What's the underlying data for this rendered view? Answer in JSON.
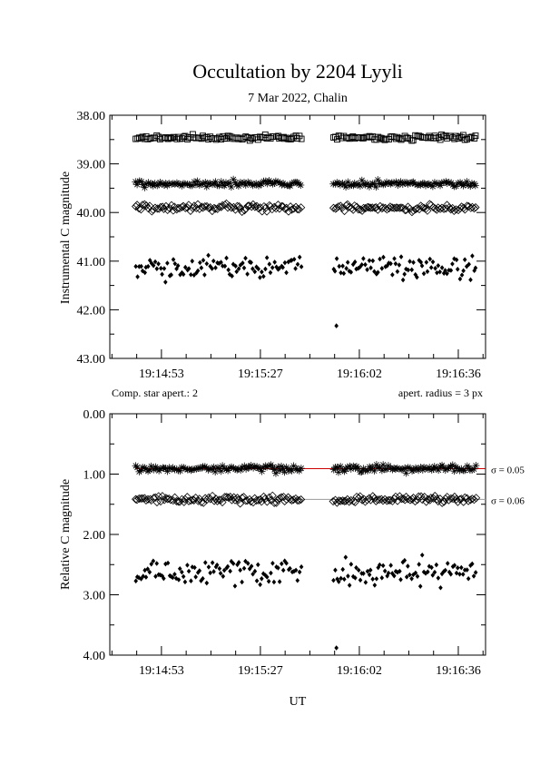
{
  "title": "Occultation by 2204 Lyyli",
  "subtitle": "7 Mar 2022, Chalin",
  "xlabel": "UT",
  "notes": {
    "left": "Comp. star apert.: 2",
    "right": "apert. radius = 3 px"
  },
  "colors": {
    "axis": "#000000",
    "fit_red": "#cc0000",
    "fit_gray": "#999999"
  },
  "chart_data": [
    {
      "type": "scatter",
      "ylabel": "Instrumental C magnitude",
      "ylim": [
        38.0,
        43.0
      ],
      "y_inverted": true,
      "yticks": [
        "38.00",
        "39.00",
        "40.00",
        "41.00",
        "42.00",
        "43.00"
      ],
      "xticks": [
        "19:14:53",
        "19:15:27",
        "19:16:02",
        "19:16:36"
      ],
      "xlim_seconds_after_19_14_00": [
        35,
        166
      ],
      "series": [
        {
          "marker": "square",
          "level": 38.46,
          "scatter": 0.05
        },
        {
          "marker": "asterisk",
          "level": 39.41,
          "scatter": 0.06
        },
        {
          "marker": "diamond",
          "level": 39.9,
          "scatter": 0.07
        },
        {
          "marker": "filled-diamond",
          "level": 41.12,
          "scatter": 0.22
        }
      ],
      "outliers": [
        {
          "t": 114,
          "y": 42.33
        }
      ]
    },
    {
      "type": "scatter",
      "ylabel": "Relative C magnitude",
      "ylim": [
        0.0,
        4.0
      ],
      "y_inverted": true,
      "yticks": [
        "0.00",
        "1.00",
        "2.00",
        "3.00",
        "4.00"
      ],
      "xticks": [
        "19:14:53",
        "19:15:27",
        "19:16:02",
        "19:16:36"
      ],
      "xlim_seconds_after_19_14_00": [
        35,
        166
      ],
      "series": [
        {
          "marker": "asterisk",
          "level": 0.91,
          "scatter": 0.05,
          "fit": 0.91,
          "fit_color": "red",
          "sigma_label": "σ = 0.05"
        },
        {
          "marker": "diamond",
          "level": 1.42,
          "scatter": 0.06,
          "fit": 1.42,
          "fit_color": "gray",
          "sigma_label": "σ = 0.06"
        },
        {
          "marker": "filled-diamond",
          "level": 2.63,
          "scatter": 0.2
        }
      ],
      "outliers": [
        {
          "t": 114,
          "y": 3.88
        }
      ]
    }
  ]
}
